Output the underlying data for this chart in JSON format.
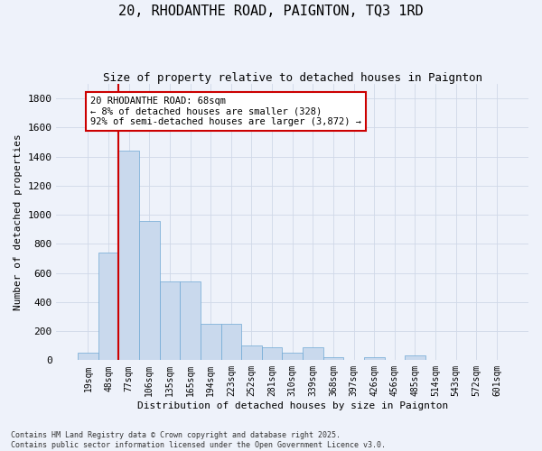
{
  "title": "20, RHODANTHE ROAD, PAIGNTON, TQ3 1RD",
  "subtitle": "Size of property relative to detached houses in Paignton",
  "xlabel": "Distribution of detached houses by size in Paignton",
  "ylabel": "Number of detached properties",
  "categories": [
    "19sqm",
    "48sqm",
    "77sqm",
    "106sqm",
    "135sqm",
    "165sqm",
    "194sqm",
    "223sqm",
    "252sqm",
    "281sqm",
    "310sqm",
    "339sqm",
    "368sqm",
    "397sqm",
    "426sqm",
    "456sqm",
    "485sqm",
    "514sqm",
    "543sqm",
    "572sqm",
    "601sqm"
  ],
  "values": [
    50,
    740,
    1440,
    960,
    540,
    540,
    250,
    250,
    100,
    90,
    50,
    90,
    20,
    5,
    20,
    5,
    30,
    5,
    5,
    5,
    5
  ],
  "bar_color": "#c9d9ed",
  "bar_edge_color": "#6fa8d4",
  "grid_color": "#d0d8e8",
  "bg_color": "#eef2fa",
  "red_line_index": 1,
  "annotation_text": "20 RHODANTHE ROAD: 68sqm\n← 8% of detached houses are smaller (328)\n92% of semi-detached houses are larger (3,872) →",
  "annotation_box_color": "#ffffff",
  "annotation_box_edge": "#cc0000",
  "ylim": [
    0,
    1900
  ],
  "yticks": [
    0,
    200,
    400,
    600,
    800,
    1000,
    1200,
    1400,
    1600,
    1800
  ],
  "footnote": "Contains HM Land Registry data © Crown copyright and database right 2025.\nContains public sector information licensed under the Open Government Licence v3.0."
}
